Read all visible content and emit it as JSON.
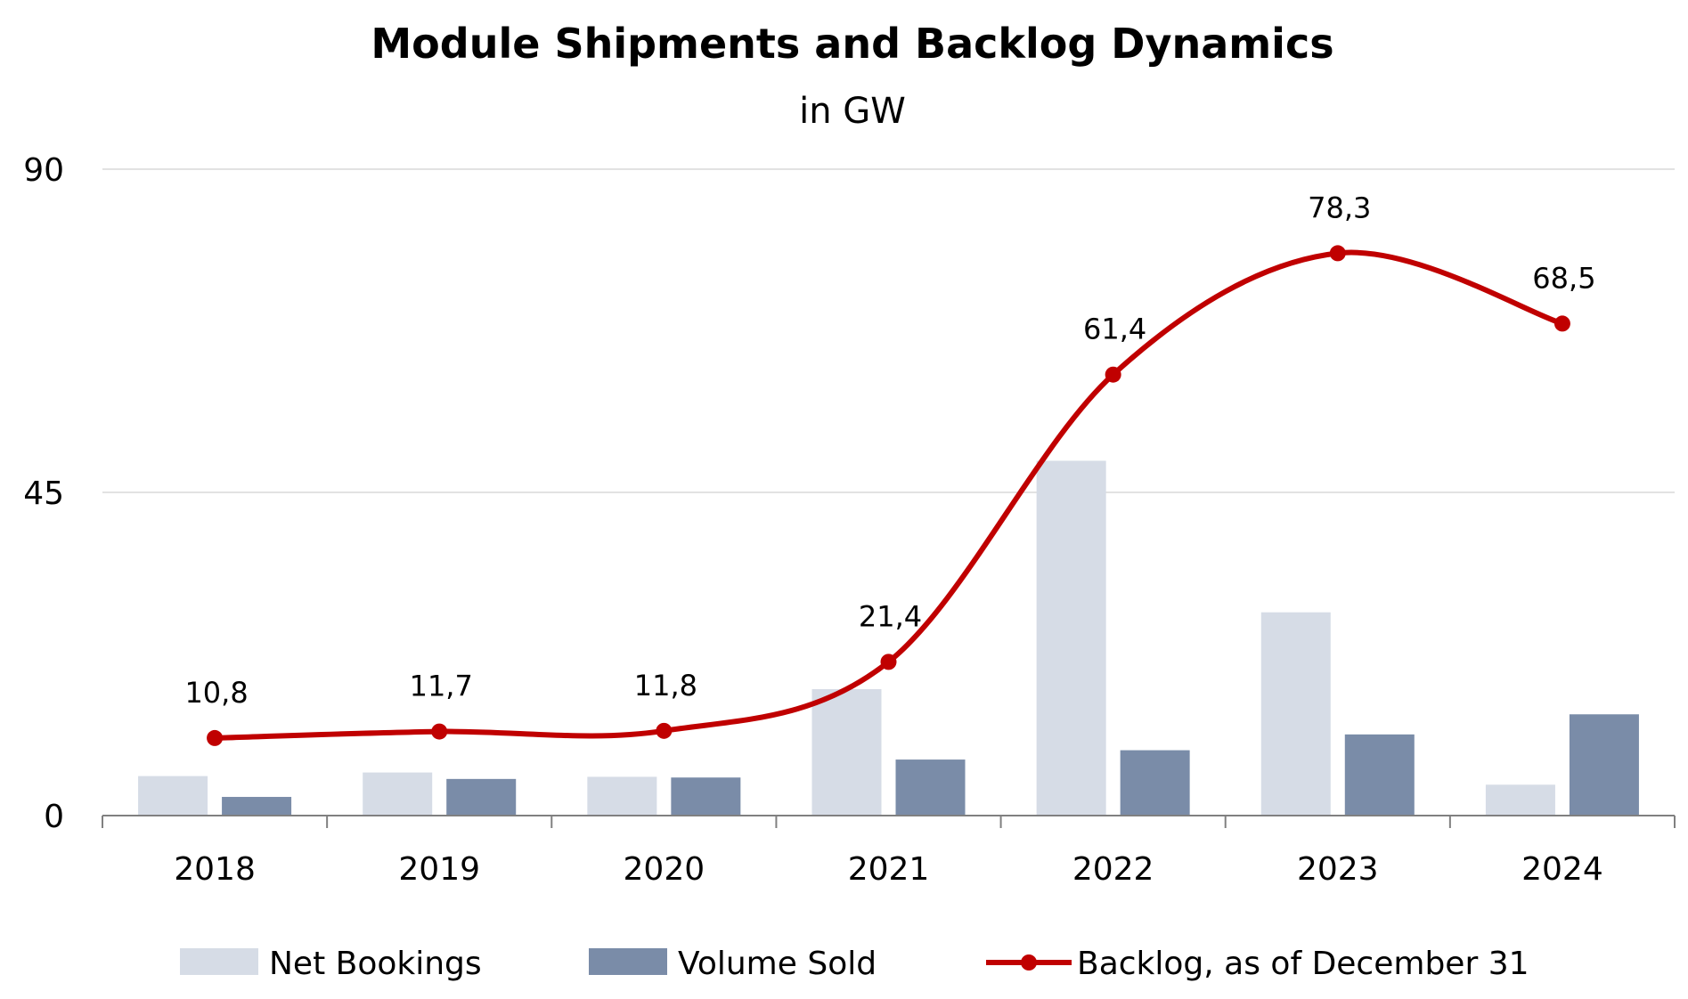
{
  "chart_data": {
    "type": "bar",
    "title": "Module Shipments and Backlog Dynamics",
    "subtitle": "in GW",
    "categories": [
      "2018",
      "2019",
      "2020",
      "2021",
      "2022",
      "2023",
      "2024"
    ],
    "ylim": [
      0,
      90
    ],
    "yticks": [
      "0",
      "45",
      "90"
    ],
    "ytick_values": [
      0,
      45,
      90
    ],
    "grid": true,
    "legend_position": "bottom",
    "series": [
      {
        "name": "Net Bookings",
        "type": "bar",
        "color": "#d6dce6",
        "values": [
          5.5,
          6.0,
          5.4,
          17.6,
          49.4,
          28.3,
          4.3
        ]
      },
      {
        "name": "Volume Sold",
        "type": "bar",
        "color": "#7a8ca8",
        "values": [
          2.6,
          5.1,
          5.3,
          7.8,
          9.1,
          11.3,
          14.1
        ]
      },
      {
        "name": "Backlog, as of December 31",
        "type": "line",
        "color": "#c00000",
        "values": [
          10.8,
          11.7,
          11.8,
          21.4,
          61.4,
          78.3,
          68.5
        ],
        "labels": [
          "10,8",
          "11,7",
          "11,8",
          "21,4",
          "61,4",
          "78,3",
          "68,5"
        ]
      }
    ]
  }
}
